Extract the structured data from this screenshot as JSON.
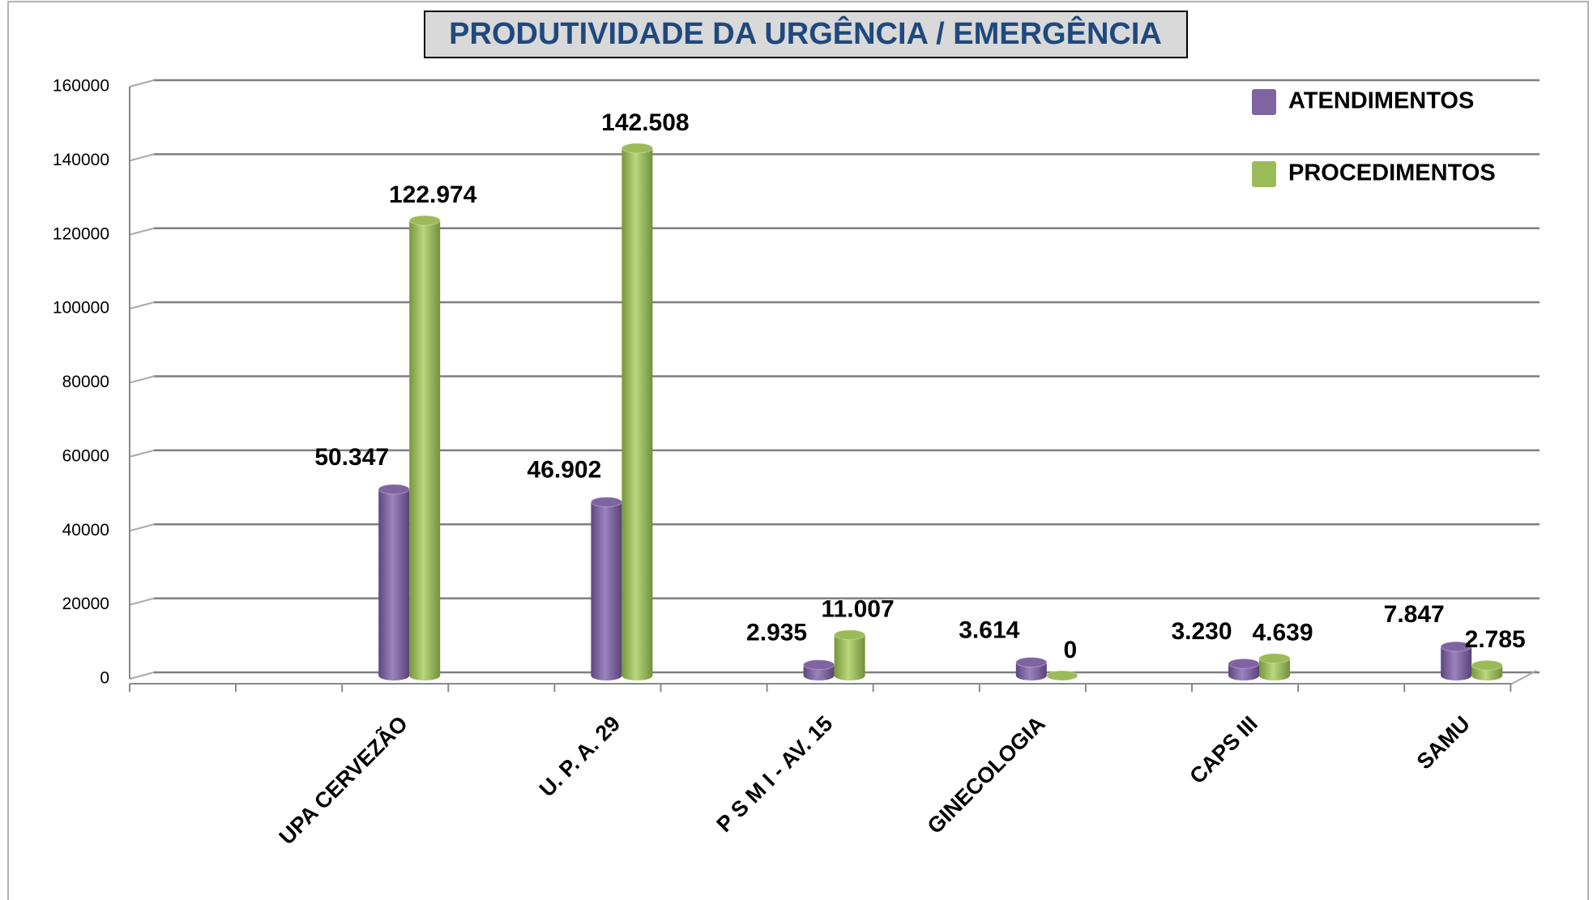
{
  "chart_data": {
    "type": "bar",
    "title": "PRODUTIVIDADE DA URGÊNCIA / EMERGÊNCIA",
    "categories": [
      "UPA  CERVEZÃO",
      "U. P. A.  29",
      "P S M I - AV. 15",
      "GINECOLOGIA",
      "CAPS  III",
      "SAMU"
    ],
    "series": [
      {
        "name": "ATENDIMENTOS",
        "color": "#8064a2",
        "values": [
          50347,
          46902,
          2935,
          3614,
          3230,
          7847
        ],
        "value_labels": [
          "50.347",
          "46.902",
          "2.935",
          "3.614",
          "3.230",
          "7.847"
        ]
      },
      {
        "name": "PROCEDIMENTOS",
        "color": "#9bbb59",
        "values": [
          122974,
          142508,
          11007,
          0,
          4639,
          2785
        ],
        "value_labels": [
          "122.974",
          "142.508",
          "11.007",
          "0",
          "4.639",
          "2.785"
        ]
      }
    ],
    "ylim": [
      0,
      160000
    ],
    "yticks": [
      0,
      20000,
      40000,
      60000,
      80000,
      100000,
      120000,
      140000,
      160000
    ],
    "grid": true,
    "legend": "top-right"
  }
}
